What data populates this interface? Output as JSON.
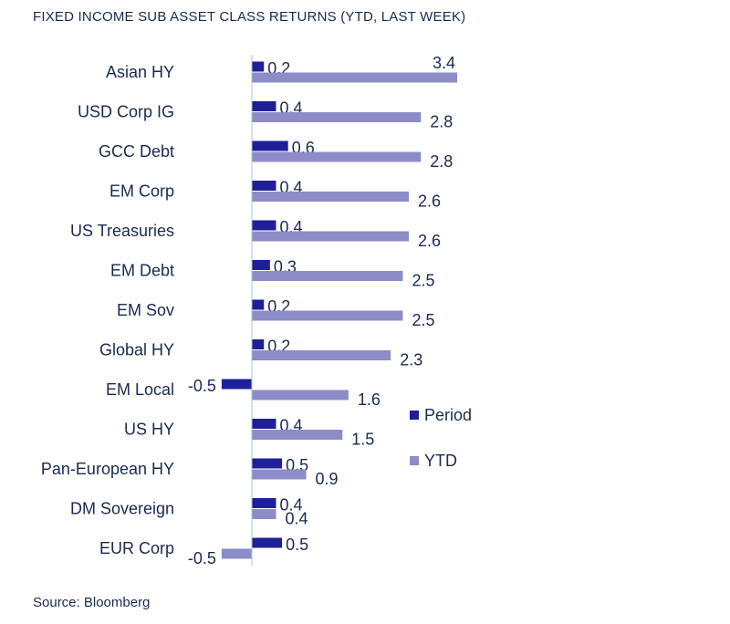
{
  "title": "FIXED INCOME SUB ASSET CLASS RETURNS (YTD, LAST WEEK)",
  "source": "Source: Bloomberg",
  "colors": {
    "period": "#1f1f99",
    "ytd": "#8c8cc8",
    "axis": "#a9c4e0",
    "text": "#1a2a4f"
  },
  "chart_data": {
    "type": "bar",
    "orientation": "horizontal",
    "categories": [
      "Asian HY",
      "USD Corp IG",
      "GCC Debt",
      "EM Corp",
      "US Treasuries",
      "EM Debt",
      "EM Sov",
      "Global HY",
      "EM Local",
      "US HY",
      "Pan-European HY",
      "DM Sovereign",
      "EUR Corp"
    ],
    "series": [
      {
        "name": "Period",
        "values": [
          0.2,
          0.4,
          0.6,
          0.4,
          0.4,
          0.3,
          0.2,
          0.2,
          -0.5,
          0.4,
          0.5,
          0.4,
          0.5
        ]
      },
      {
        "name": "YTD",
        "values": [
          3.4,
          2.8,
          2.8,
          2.6,
          2.6,
          2.5,
          2.5,
          2.3,
          1.6,
          1.5,
          0.9,
          0.4,
          -0.5
        ]
      }
    ],
    "xlim": [
      -0.5,
      3.4
    ],
    "legend_position": "right",
    "grid": false
  }
}
